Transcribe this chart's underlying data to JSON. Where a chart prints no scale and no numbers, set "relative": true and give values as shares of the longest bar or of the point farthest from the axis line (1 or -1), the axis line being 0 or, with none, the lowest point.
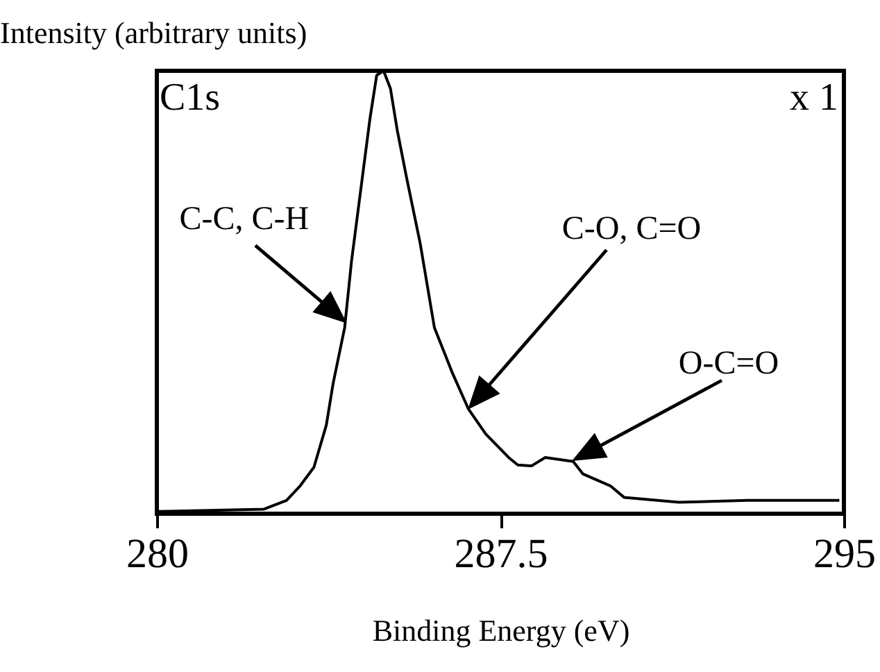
{
  "chart_data": {
    "type": "line",
    "relative": true,
    "xlabel": "Binding Energy (eV)",
    "ylabel": "Intensity (arbitrary units)",
    "xlim": [
      280,
      295
    ],
    "xticks": [
      280,
      287.5,
      295
    ],
    "color": "#000000",
    "x": [
      280.0,
      282.33,
      282.83,
      283.13,
      283.43,
      283.7,
      283.85,
      284.1,
      284.25,
      284.45,
      284.65,
      284.8,
      284.95,
      285.1,
      285.25,
      285.45,
      285.75,
      286.06,
      286.46,
      286.8,
      287.18,
      287.68,
      287.88,
      288.18,
      288.48,
      289.09,
      289.3,
      289.9,
      290.2,
      291.4,
      292.9,
      294.9
    ],
    "values": [
      0.005,
      0.01,
      0.03,
      0.063,
      0.105,
      0.2,
      0.295,
      0.42,
      0.57,
      0.73,
      0.89,
      0.99,
      1.0,
      0.96,
      0.865,
      0.76,
      0.61,
      0.42,
      0.316,
      0.237,
      0.18,
      0.127,
      0.11,
      0.108,
      0.127,
      0.118,
      0.09,
      0.063,
      0.037,
      0.026,
      0.03,
      0.03
    ],
    "annotations": [
      "C1s",
      "x 1",
      {
        "text": "C-C, C-H",
        "x": 284.15,
        "y": 0.43
      },
      "C-O, C=O",
      "O-C=O"
    ]
  }
}
